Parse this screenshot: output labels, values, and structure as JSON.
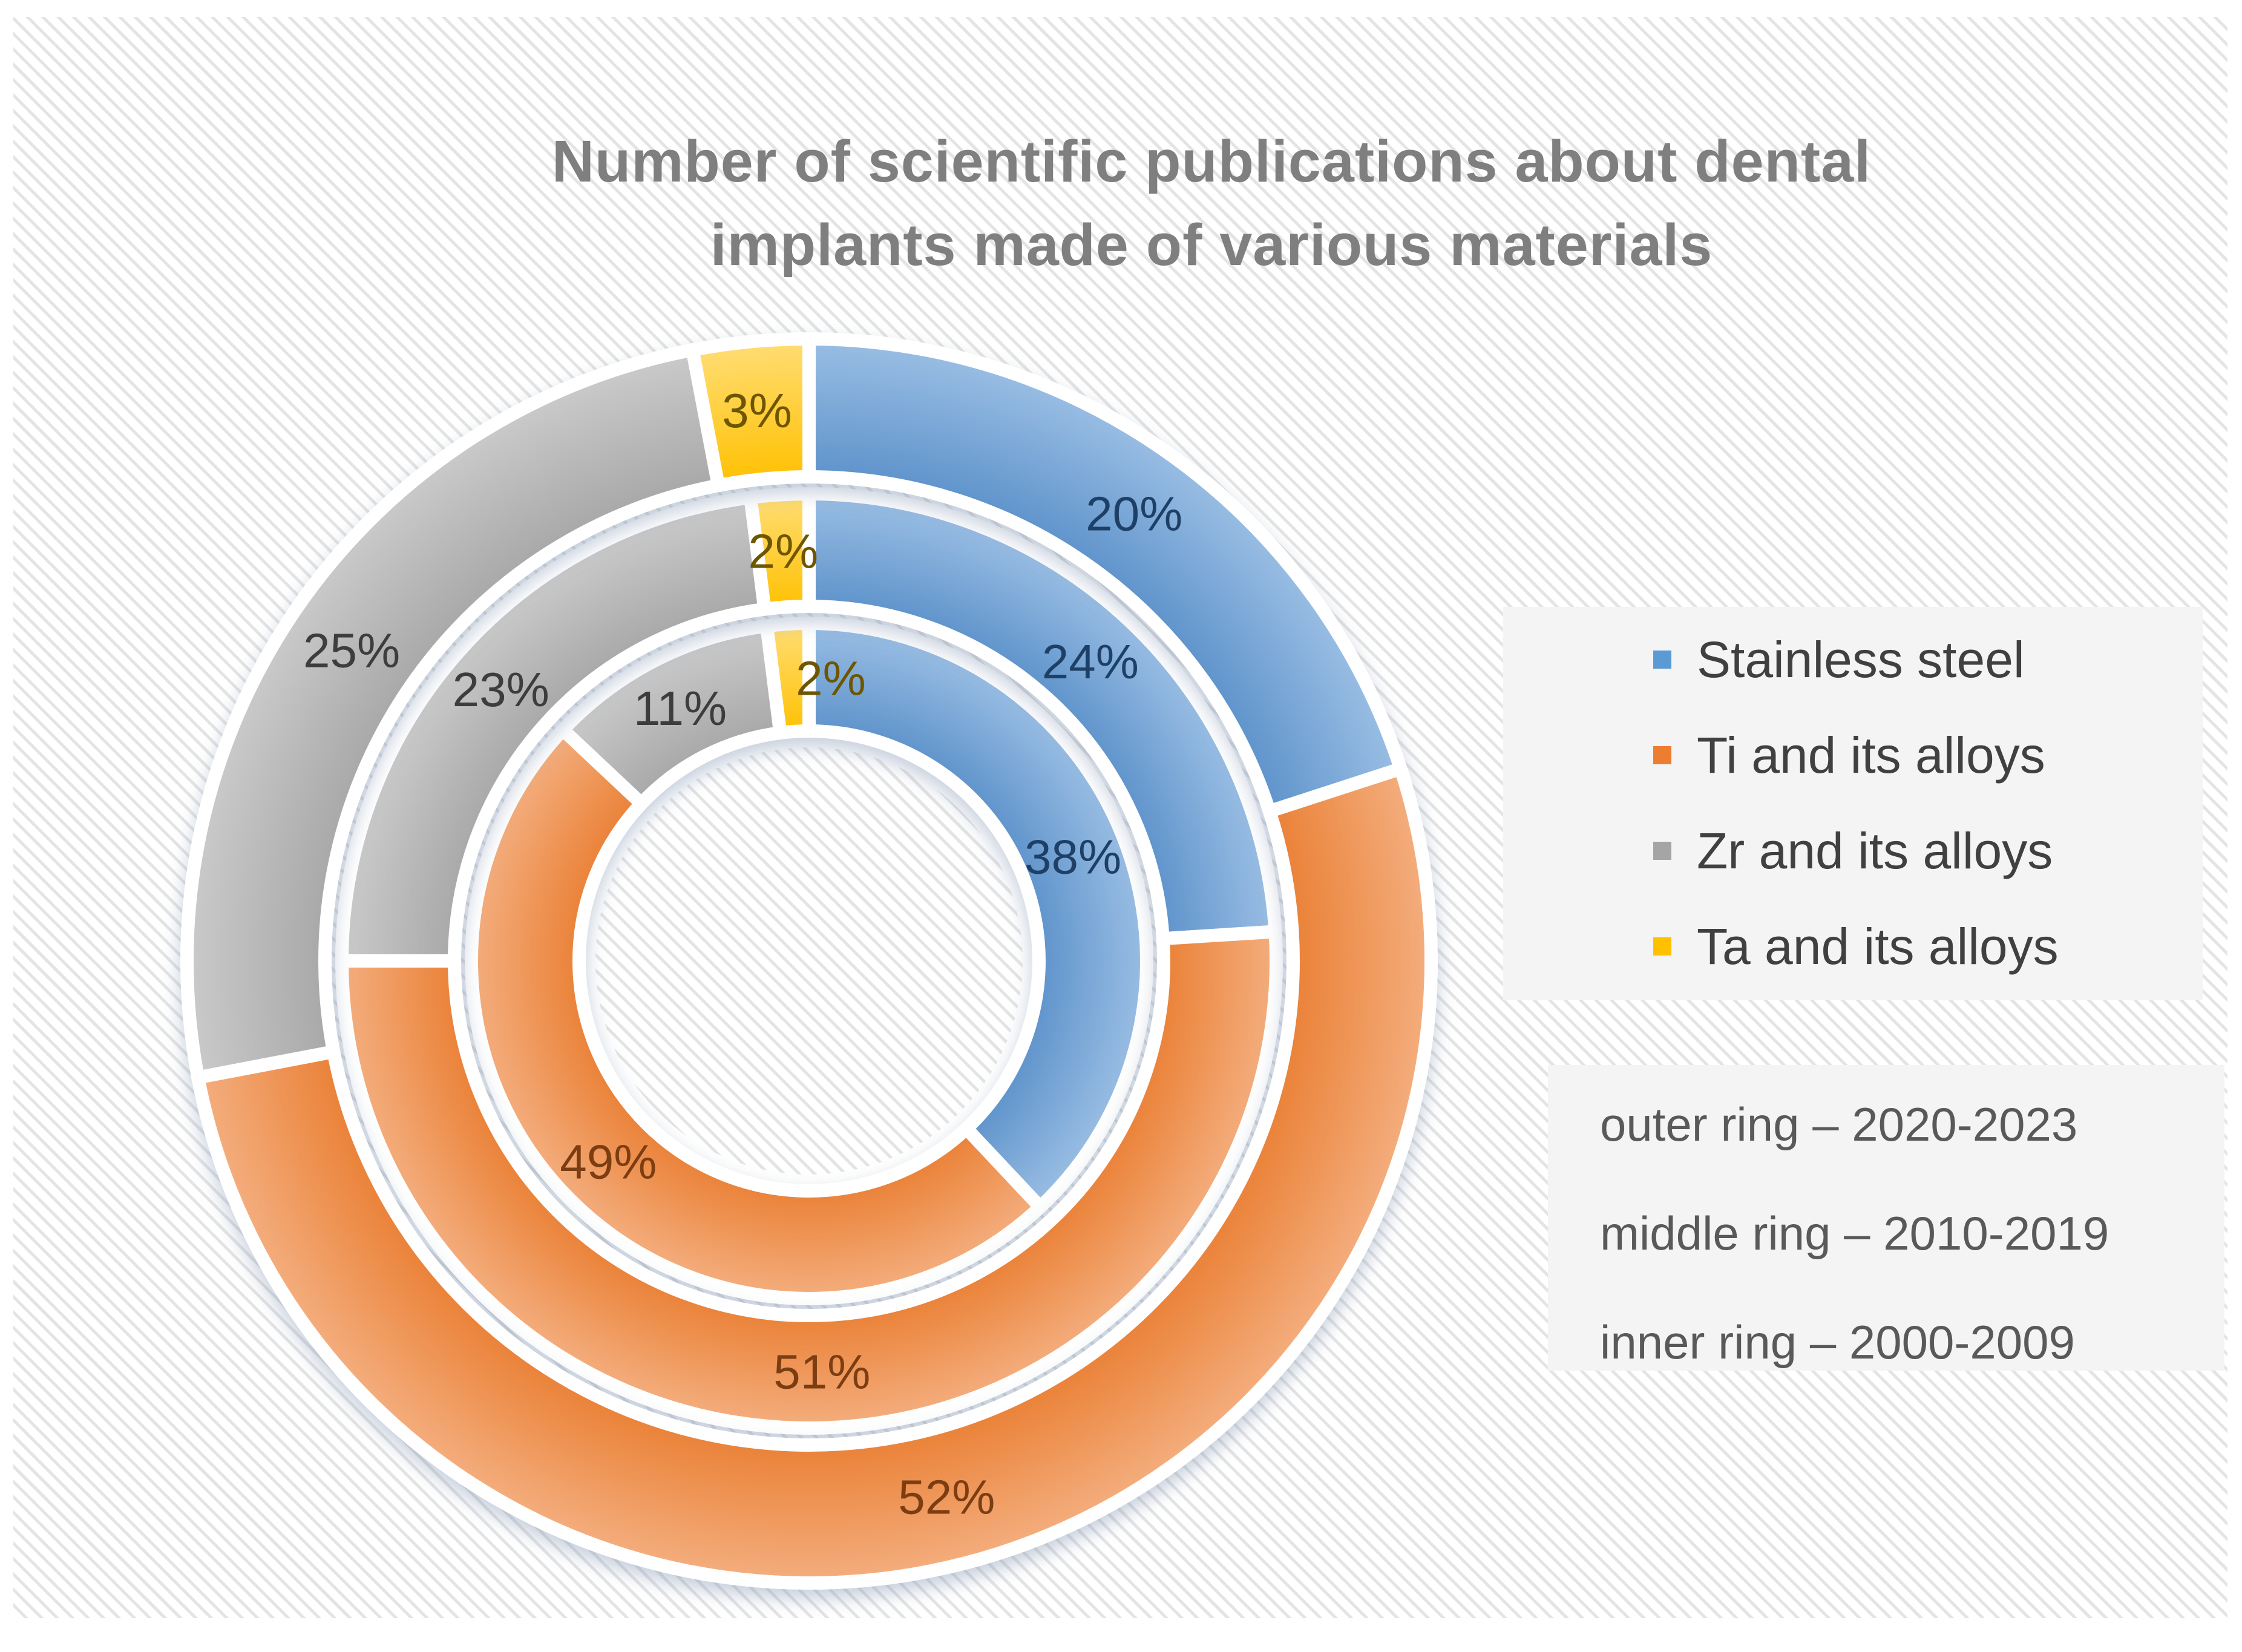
{
  "window": {
    "background": "#ffffff",
    "panel_pattern": "diagonal-hatch",
    "panel_pattern_line_color": "#e4e4e4"
  },
  "title": {
    "text": "Number of scientific publications about dental\nimplants made of various materials",
    "color": "#7f7f7f"
  },
  "chart_data": {
    "type": "donut",
    "title": "Number of scientific publications about dental implants made of various materials",
    "unit": "%",
    "direction": "clockwise",
    "start_angle_deg": 0,
    "legend_position": "right",
    "grid": false,
    "series": [
      {
        "name": "Stainless steel",
        "color": "#5E93CB",
        "color_light": "#9ABEE4",
        "label_color": "#1F4066",
        "legend_color": "#5B9BD5"
      },
      {
        "name": "Ti and its alloys",
        "color": "#EA8137",
        "color_light": "#F4AE7E",
        "label_color": "#7C3D12",
        "legend_color": "#ED7D31"
      },
      {
        "name": "Zr and its alloys",
        "color": "#A8A8A8",
        "color_light": "#CACACA",
        "label_color": "#3D3D3D",
        "legend_color": "#A5A5A5"
      },
      {
        "name": "Ta and its alloys",
        "color": "#FFC103",
        "color_light": "#FFDD75",
        "label_color": "#6E5500",
        "legend_color": "#FFC000"
      }
    ],
    "rings": [
      {
        "position": "inner",
        "period": "2000-2009",
        "values": [
          38,
          49,
          11,
          2
        ]
      },
      {
        "position": "middle",
        "period": "2010-2019",
        "values": [
          24,
          51,
          23,
          2
        ]
      },
      {
        "position": "outer",
        "period": "2020-2023",
        "values": [
          20,
          52,
          25,
          3
        ]
      }
    ]
  },
  "legend": {
    "items": [
      {
        "label": "Stainless steel",
        "color": "#5B9BD5"
      },
      {
        "label": "Ti and its alloys",
        "color": "#ED7D31"
      },
      {
        "label": "Zr and its alloys",
        "color": "#A5A5A5"
      },
      {
        "label": "Ta and its alloys",
        "color": "#FFC000"
      }
    ]
  },
  "notes": {
    "color": "#595959",
    "lines": [
      "outer ring – 2020-2023",
      "middle ring – 2010-2019",
      "inner ring – 2000-2009"
    ]
  }
}
